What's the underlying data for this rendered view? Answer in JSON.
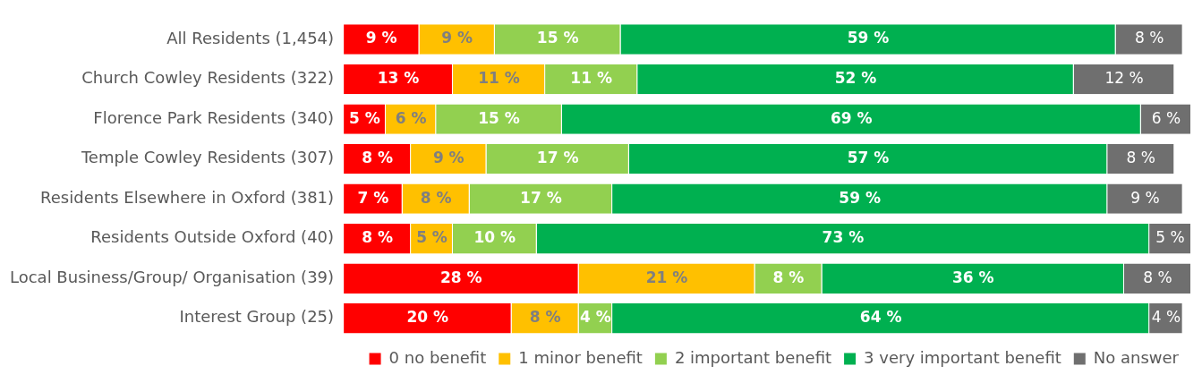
{
  "chart_data": {
    "type": "bar",
    "orientation": "horizontal",
    "stacked": true,
    "legend": "bottom",
    "grid": false,
    "xlim": [
      0,
      101
    ],
    "tick_labels": "y",
    "categories": [
      "All Residents (1,454)",
      "Church Cowley Residents (322)",
      "Florence Park Residents (340)",
      "Temple Cowley Residents (307)",
      "Residents Elsewhere in Oxford (381)",
      "Residents Outside Oxford (40)",
      "Local Business/Group/ Organisation (39)",
      "Interest Group (25)"
    ],
    "series": [
      {
        "name": "0 no benefit",
        "color": "#ff0000",
        "values": [
          9,
          13,
          5,
          8,
          7,
          8,
          28,
          20
        ],
        "value_labels": [
          "9 %",
          "13 %",
          "5 %",
          "8 %",
          "7 %",
          "8 %",
          "28 %",
          "20 %"
        ]
      },
      {
        "name": "1 minor benefit",
        "color": "#ffc000",
        "values": [
          9,
          11,
          6,
          9,
          8,
          5,
          21,
          8
        ],
        "value_labels": [
          "9 %",
          "11 %",
          "6 %",
          "9 %",
          "8 %",
          "5 %",
          "21 %",
          "8 %"
        ]
      },
      {
        "name": "2 important benefit",
        "color": "#92d050",
        "values": [
          15,
          11,
          15,
          17,
          17,
          10,
          8,
          4
        ],
        "value_labels": [
          "15 %",
          "11 %",
          "15 %",
          "17 %",
          "17 %",
          "10 %",
          "8 %",
          "4 %"
        ]
      },
      {
        "name": "3 very important benefit",
        "color": "#00b050",
        "values": [
          59,
          52,
          69,
          57,
          59,
          73,
          36,
          64
        ],
        "value_labels": [
          "59 %",
          "52 %",
          "69 %",
          "57 %",
          "59 %",
          "73 %",
          "36 %",
          "64 %"
        ]
      },
      {
        "name": "No answer",
        "color": "#6f6f6f",
        "values": [
          8,
          12,
          6,
          8,
          9,
          5,
          8,
          4
        ],
        "value_labels": [
          "8 %",
          "12 %",
          "6 %",
          "8 %",
          "9 %",
          "5 %",
          "8 %",
          "4 %"
        ]
      }
    ]
  }
}
